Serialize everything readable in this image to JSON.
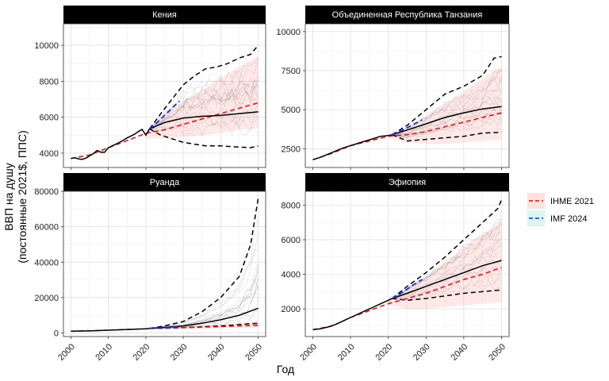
{
  "figure": {
    "xlabel": "Год",
    "ylabel_line1": "ВВП на душу",
    "ylabel_line2": "(постоянные 2021$, ППС)",
    "legend": [
      {
        "label": "IHME 2021",
        "line_color": "#ff0000",
        "fill_color": "#fde2de"
      },
      {
        "label": "IMF 2024",
        "line_color": "#0033ff",
        "fill_color": "#dcf6f6"
      }
    ],
    "colors": {
      "ihme": "#ff0000",
      "imf": "#0033ff",
      "median": "#000000",
      "band": "#f8766d",
      "traj": "#444444",
      "strip": "#000000"
    }
  },
  "chart_data": [
    {
      "type": "line",
      "title": "Кения",
      "xlim": [
        1998,
        2052
      ],
      "ylim": [
        3200,
        11200
      ],
      "yticks": [
        4000,
        6000,
        8000,
        10000
      ],
      "ytick_labels": [
        "4000",
        "6000",
        "8000",
        "10000"
      ],
      "xticks": [
        2000,
        2010,
        2020,
        2030,
        2040,
        2050
      ],
      "xtick_labels": [
        "2000",
        "2010",
        "2020",
        "2030",
        "2040",
        "2050"
      ],
      "historical": {
        "x": [
          2000,
          2001,
          2002,
          2003,
          2004,
          2005,
          2006,
          2007,
          2008,
          2009,
          2010,
          2011,
          2012,
          2013,
          2014,
          2015,
          2016,
          2017,
          2018,
          2019,
          2020,
          2021
        ],
        "y": [
          3700,
          3750,
          3680,
          3650,
          3720,
          3850,
          3980,
          4150,
          4050,
          4050,
          4300,
          4400,
          4500,
          4600,
          4720,
          4850,
          4950,
          5050,
          5200,
          5320,
          5000,
          5350
        ]
      },
      "median": {
        "x": [
          2021,
          2025,
          2030,
          2035,
          2040,
          2045,
          2050
        ],
        "y": [
          5350,
          5700,
          5950,
          6050,
          6100,
          6200,
          6300
        ]
      },
      "upper": {
        "x": [
          2021,
          2024,
          2027,
          2030,
          2033,
          2036,
          2039,
          2042,
          2045,
          2048,
          2050
        ],
        "y": [
          5350,
          6200,
          7000,
          7800,
          8300,
          8700,
          8800,
          9000,
          9300,
          9500,
          10000
        ]
      },
      "lower": {
        "x": [
          2021,
          2024,
          2027,
          2030,
          2033,
          2036,
          2040,
          2044,
          2048,
          2050
        ],
        "y": [
          5350,
          5000,
          4800,
          4600,
          4500,
          4400,
          4400,
          4350,
          4300,
          4400
        ]
      },
      "ihme": {
        "x": [
          2000,
          2005,
          2010,
          2015,
          2020,
          2025,
          2030,
          2035,
          2040,
          2045,
          2050
        ],
        "y": [
          3700,
          3900,
          4300,
          4700,
          5100,
          5300,
          5600,
          5900,
          6200,
          6500,
          6800
        ]
      },
      "ihme_band": {
        "x": [
          2020,
          2025,
          2030,
          2035,
          2040,
          2045,
          2050
        ],
        "upper": [
          5300,
          6200,
          6900,
          7500,
          8200,
          8800,
          9400
        ],
        "lower": [
          4800,
          4800,
          4900,
          5000,
          5100,
          5300,
          5400
        ]
      },
      "imf": {
        "x": [
          2021,
          2023,
          2025,
          2027,
          2029
        ],
        "y": [
          5350,
          5700,
          6100,
          6500,
          6900
        ]
      }
    },
    {
      "type": "line",
      "title": "Объединенная Республика Танзания",
      "xlim": [
        1998,
        2052
      ],
      "ylim": [
        1300,
        10500
      ],
      "yticks": [
        2500,
        5000,
        7500,
        10000
      ],
      "ytick_labels": [
        "2500",
        "5000",
        "7500",
        "10000"
      ],
      "xticks": [
        2000,
        2010,
        2020,
        2030,
        2040,
        2050
      ],
      "xtick_labels": [
        "2000",
        "2010",
        "2020",
        "2030",
        "2040",
        "2050"
      ],
      "historical": {
        "x": [
          2000,
          2002,
          2004,
          2006,
          2008,
          2010,
          2012,
          2014,
          2016,
          2018,
          2020,
          2021
        ],
        "y": [
          1800,
          1950,
          2150,
          2350,
          2550,
          2700,
          2850,
          3000,
          3150,
          3300,
          3350,
          3400
        ]
      },
      "median": {
        "x": [
          2021,
          2025,
          2030,
          2035,
          2040,
          2045,
          2050
        ],
        "y": [
          3400,
          3700,
          4100,
          4500,
          4800,
          5050,
          5200
        ]
      },
      "upper": {
        "x": [
          2021,
          2025,
          2030,
          2035,
          2040,
          2045,
          2048,
          2050
        ],
        "y": [
          3400,
          4000,
          5000,
          6000,
          6500,
          7200,
          8300,
          8400
        ]
      },
      "lower": {
        "x": [
          2021,
          2025,
          2030,
          2035,
          2040,
          2045,
          2050
        ],
        "y": [
          3400,
          3000,
          3100,
          3200,
          3300,
          3500,
          3550
        ]
      },
      "ihme": {
        "x": [
          2000,
          2005,
          2010,
          2015,
          2020,
          2025,
          2030,
          2035,
          2040,
          2045,
          2050
        ],
        "y": [
          1800,
          2200,
          2700,
          3000,
          3300,
          3400,
          3600,
          3900,
          4200,
          4500,
          4800
        ]
      },
      "ihme_band": {
        "x": [
          2020,
          2025,
          2030,
          2035,
          2040,
          2045,
          2050
        ],
        "upper": [
          3400,
          3900,
          4600,
          5400,
          6200,
          7000,
          7800
        ],
        "lower": [
          3200,
          2900,
          2800,
          2800,
          2900,
          3000,
          3100
        ]
      },
      "imf": {
        "x": [
          2021,
          2023,
          2025,
          2027,
          2029
        ],
        "y": [
          3400,
          3600,
          3850,
          4100,
          4350
        ]
      }
    },
    {
      "type": "line",
      "title": "Руанда",
      "xlim": [
        1998,
        2052
      ],
      "ylim": [
        -2000,
        80000
      ],
      "yticks": [
        0,
        20000,
        40000,
        60000,
        80000
      ],
      "ytick_labels": [
        "0",
        "20000",
        "40000",
        "60000",
        "80000"
      ],
      "xticks": [
        2000,
        2010,
        2020,
        2030,
        2040,
        2050
      ],
      "xtick_labels": [
        "2000",
        "2010",
        "2020",
        "2030",
        "2040",
        "2050"
      ],
      "historical": {
        "x": [
          2000,
          2005,
          2010,
          2015,
          2020,
          2021
        ],
        "y": [
          1000,
          1200,
          1600,
          2000,
          2400,
          2600
        ]
      },
      "median": {
        "x": [
          2021,
          2025,
          2030,
          2035,
          2040,
          2045,
          2050
        ],
        "y": [
          2600,
          3200,
          4000,
          5500,
          7500,
          10000,
          14000
        ]
      },
      "upper": {
        "x": [
          2021,
          2025,
          2030,
          2035,
          2040,
          2045,
          2048,
          2050
        ],
        "y": [
          2600,
          4000,
          6500,
          12000,
          20000,
          32000,
          50000,
          76000
        ]
      },
      "lower": {
        "x": [
          2021,
          2025,
          2030,
          2035,
          2040,
          2045,
          2050
        ],
        "y": [
          2600,
          2700,
          3000,
          3500,
          4000,
          4800,
          5500
        ]
      },
      "ihme": {
        "x": [
          2000,
          2010,
          2020,
          2030,
          2040,
          2050
        ],
        "y": [
          1000,
          1600,
          2400,
          3000,
          3600,
          4400
        ]
      },
      "ihme_band": {
        "x": [
          2020,
          2025,
          2030,
          2035,
          2040,
          2045,
          2050
        ],
        "upper": [
          2600,
          3000,
          3500,
          4000,
          4800,
          5500,
          6500
        ],
        "lower": [
          2300,
          2400,
          2500,
          2600,
          2700,
          2800,
          3000
        ]
      },
      "imf": {
        "x": [
          2021,
          2023,
          2025,
          2027,
          2029
        ],
        "y": [
          2600,
          2800,
          3050,
          3300,
          3600
        ]
      }
    },
    {
      "type": "line",
      "title": "Эфиопия",
      "xlim": [
        1998,
        2052
      ],
      "ylim": [
        400,
        8800
      ],
      "yticks": [
        2000,
        4000,
        6000,
        8000
      ],
      "ytick_labels": [
        "2000",
        "4000",
        "6000",
        "8000"
      ],
      "xticks": [
        2000,
        2010,
        2020,
        2030,
        2040,
        2050
      ],
      "xtick_labels": [
        "2000",
        "2010",
        "2020",
        "2030",
        "2040",
        "2050"
      ],
      "historical": {
        "x": [
          2000,
          2002,
          2004,
          2006,
          2008,
          2010,
          2012,
          2014,
          2016,
          2018,
          2020,
          2021
        ],
        "y": [
          800,
          850,
          950,
          1100,
          1300,
          1500,
          1700,
          1900,
          2100,
          2300,
          2500,
          2600
        ]
      },
      "median": {
        "x": [
          2021,
          2025,
          2030,
          2035,
          2040,
          2045,
          2050
        ],
        "y": [
          2600,
          2900,
          3300,
          3700,
          4100,
          4500,
          4800
        ]
      },
      "upper": {
        "x": [
          2021,
          2025,
          2030,
          2035,
          2040,
          2045,
          2049,
          2050
        ],
        "y": [
          2600,
          3300,
          4100,
          5000,
          6000,
          7000,
          7800,
          8300
        ]
      },
      "lower": {
        "x": [
          2021,
          2025,
          2030,
          2035,
          2040,
          2045,
          2050
        ],
        "y": [
          2600,
          2500,
          2600,
          2750,
          2900,
          3000,
          3100
        ]
      },
      "ihme": {
        "x": [
          2000,
          2005,
          2010,
          2015,
          2020,
          2025,
          2030,
          2035,
          2040,
          2045,
          2050
        ],
        "y": [
          800,
          1000,
          1500,
          1900,
          2300,
          2600,
          2900,
          3300,
          3700,
          4000,
          4400
        ]
      },
      "ihme_band": {
        "x": [
          2020,
          2025,
          2030,
          2035,
          2040,
          2045,
          2050
        ],
        "upper": [
          2700,
          3200,
          3900,
          4700,
          5500,
          6300,
          7000
        ],
        "lower": [
          2200,
          2000,
          2000,
          2100,
          2200,
          2300,
          2400
        ]
      },
      "imf": {
        "x": [
          2021,
          2023,
          2025,
          2027,
          2029
        ],
        "y": [
          2600,
          2850,
          3150,
          3450,
          3700
        ]
      }
    }
  ]
}
